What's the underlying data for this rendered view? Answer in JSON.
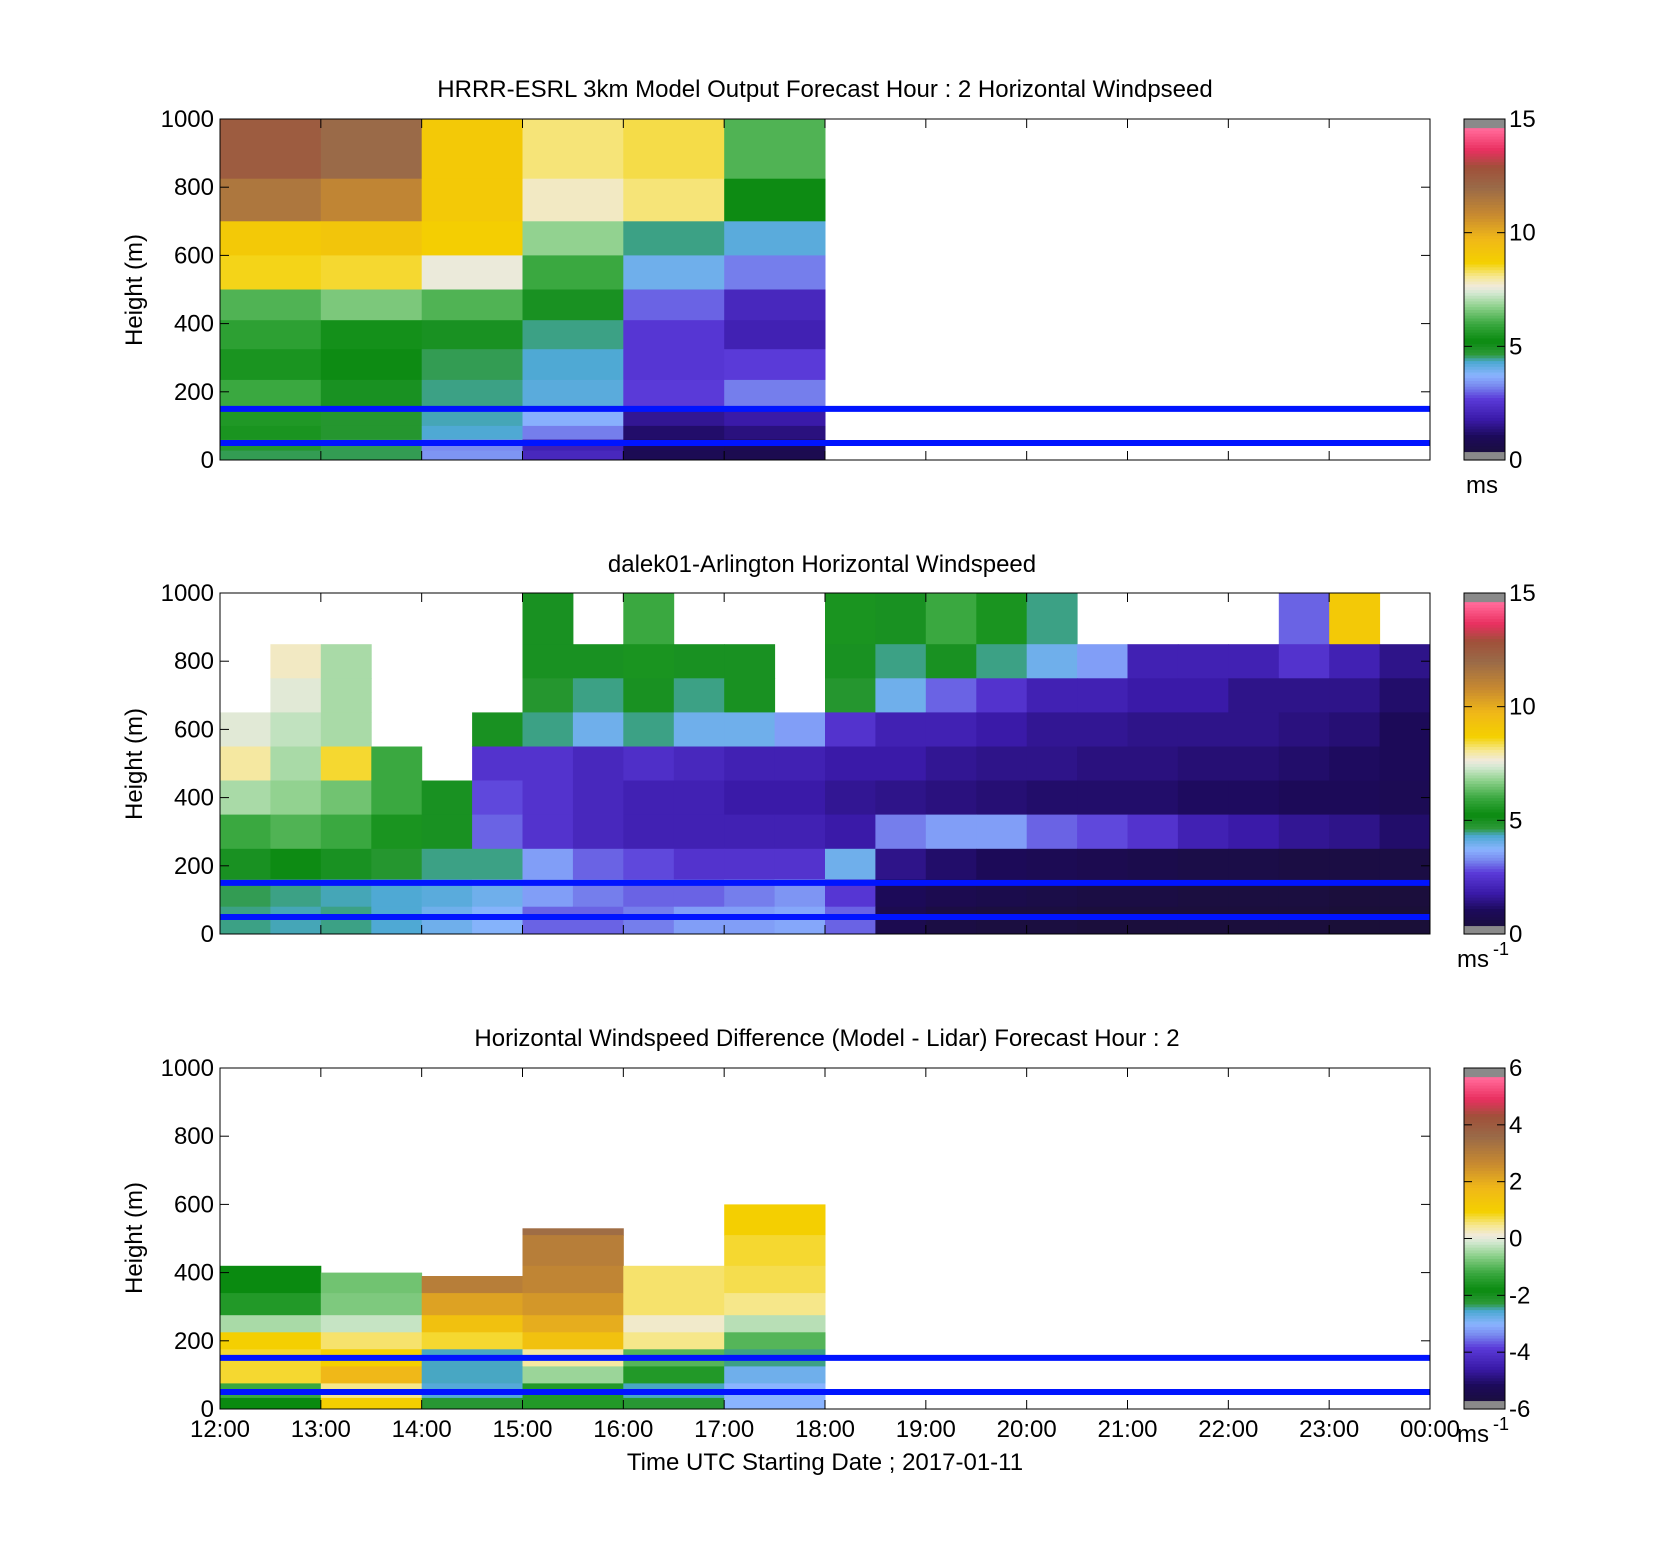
{
  "figure": {
    "xlabel": "Time UTC  Starting Date ; 2017-01-11"
  },
  "chart_data": [
    {
      "type": "heatmap",
      "title": "HRRR-ESRL 3km Model Output   Forecast Hour : 2 Horizontal Windpseed",
      "ylabel": "Height (m)",
      "xlabel": "",
      "x_ticks": [
        "12:00",
        "13:00",
        "14:00",
        "15:00",
        "16:00",
        "17:00",
        "18:00",
        "19:00",
        "20:00",
        "21:00",
        "22:00",
        "23:00",
        "00:00"
      ],
      "x_tick_labels_shown": false,
      "y_ticks": [
        0,
        200,
        400,
        600,
        800,
        1000
      ],
      "ylim": [
        0,
        1000
      ],
      "colorbar": {
        "ticks": [
          0,
          5,
          10,
          15
        ],
        "label": "ms",
        "superscript": "",
        "range": [
          0,
          15
        ]
      },
      "reference_lines_m": [
        50,
        150
      ],
      "reference_line_color": "#0014ff",
      "grid": false,
      "x_hours": [
        12,
        13,
        14,
        15,
        16,
        17
      ],
      "y_levels": [
        900,
        750,
        650,
        550,
        450,
        370,
        280,
        190,
        120,
        80,
        40,
        15
      ],
      "values": [
        [
          12.5,
          12.0,
          9.0,
          8.2,
          8.4,
          6.2
        ],
        [
          11.5,
          11.0,
          9.0,
          7.8,
          8.2,
          5.2
        ],
        [
          9.0,
          9.2,
          8.8,
          6.8,
          4.5,
          4.2
        ],
        [
          8.6,
          8.5,
          7.6,
          6.0,
          4.0,
          3.2
        ],
        [
          6.2,
          6.6,
          6.2,
          5.0,
          3.0,
          2.2
        ],
        [
          5.8,
          5.4,
          5.0,
          4.5,
          2.6,
          2.0
        ],
        [
          5.5,
          5.2,
          4.6,
          4.3,
          2.6,
          2.7
        ],
        [
          6.0,
          5.0,
          4.5,
          4.2,
          2.7,
          3.2
        ],
        [
          5.6,
          4.8,
          4.4,
          3.7,
          1.6,
          1.8
        ],
        [
          5.5,
          4.8,
          4.3,
          3.2,
          1.2,
          1.4
        ],
        [
          4.8,
          4.6,
          3.3,
          2.0,
          1.0,
          0.9
        ],
        [
          4.6,
          4.6,
          3.4,
          2.2,
          0.9,
          0.8
        ]
      ]
    },
    {
      "type": "heatmap",
      "title": "dalek01-Arlington  Horizontal Windspeed",
      "ylabel": "Height (m)",
      "xlabel": "",
      "x_ticks": [
        "12:00",
        "13:00",
        "14:00",
        "15:00",
        "16:00",
        "17:00",
        "18:00",
        "19:00",
        "20:00",
        "21:00",
        "22:00",
        "23:00",
        "00:00"
      ],
      "x_tick_labels_shown": false,
      "y_ticks": [
        0,
        200,
        400,
        600,
        800,
        1000
      ],
      "ylim": [
        0,
        1000
      ],
      "colorbar": {
        "ticks": [
          0,
          5,
          10,
          15
        ],
        "label": "ms",
        "superscript": "-1",
        "range": [
          0,
          15
        ]
      },
      "reference_lines_m": [
        50,
        150
      ],
      "reference_line_color": "#0014ff",
      "grid": false,
      "x_hours": [
        12.0,
        12.5,
        13.0,
        13.5,
        14.0,
        14.5,
        15.0,
        15.5,
        16.0,
        16.5,
        17.0,
        17.5,
        18.0,
        18.5,
        19.0,
        19.5,
        20.0,
        20.5,
        21.0,
        21.5,
        22.0,
        22.5,
        23.0,
        23.5
      ],
      "y_levels": [
        900,
        800,
        700,
        600,
        500,
        400,
        300,
        200,
        120,
        40
      ],
      "values": [
        [
          null,
          null,
          null,
          null,
          null,
          null,
          5.0,
          null,
          6.0,
          null,
          null,
          null,
          5.5,
          5.0,
          6.0,
          5.5,
          4.5,
          null,
          null,
          null,
          null,
          3.0,
          9.0,
          null
        ],
        [
          null,
          7.8,
          7.0,
          null,
          null,
          null,
          5.0,
          5.0,
          5.5,
          5.0,
          5.0,
          null,
          5.0,
          4.5,
          5.0,
          4.5,
          4.0,
          3.5,
          2.0,
          2.0,
          2.0,
          2.5,
          2.0,
          1.5
        ],
        [
          null,
          7.5,
          7.0,
          null,
          null,
          null,
          4.8,
          4.5,
          5.0,
          4.5,
          5.0,
          null,
          4.8,
          4.0,
          3.0,
          2.5,
          2.0,
          2.0,
          1.8,
          1.8,
          1.5,
          1.5,
          1.5,
          1.2
        ],
        [
          7.5,
          7.2,
          7.0,
          null,
          null,
          5.0,
          4.5,
          4.0,
          4.5,
          4.0,
          4.0,
          3.5,
          2.5,
          2.0,
          2.0,
          1.8,
          1.6,
          1.6,
          1.5,
          1.5,
          1.5,
          1.4,
          1.3,
          1.0
        ],
        [
          8.0,
          7.0,
          8.5,
          6.0,
          null,
          2.5,
          2.5,
          2.2,
          2.4,
          2.2,
          2.0,
          2.0,
          1.8,
          1.8,
          1.6,
          1.5,
          1.5,
          1.4,
          1.4,
          1.3,
          1.3,
          1.2,
          1.1,
          1.0
        ],
        [
          7.0,
          6.8,
          6.5,
          6.0,
          5.0,
          2.8,
          2.5,
          2.2,
          2.0,
          2.0,
          1.8,
          1.8,
          1.6,
          1.5,
          1.4,
          1.3,
          1.2,
          1.2,
          1.2,
          1.1,
          1.1,
          1.0,
          1.0,
          0.9
        ],
        [
          6.0,
          6.2,
          6.0,
          5.5,
          5.0,
          3.0,
          2.5,
          2.2,
          2.0,
          2.0,
          2.0,
          2.0,
          1.8,
          3.2,
          3.5,
          3.5,
          3.0,
          2.8,
          2.5,
          2.0,
          1.8,
          1.6,
          1.5,
          1.2
        ],
        [
          5.0,
          5.2,
          5.0,
          4.8,
          4.5,
          4.5,
          3.5,
          3.0,
          2.8,
          2.5,
          2.5,
          2.5,
          4.0,
          1.5,
          1.2,
          1.0,
          0.9,
          0.8,
          0.7,
          0.6,
          0.6,
          0.5,
          0.5,
          0.5
        ],
        [
          4.6,
          4.5,
          4.4,
          4.3,
          4.2,
          4.0,
          3.5,
          3.2,
          3.0,
          3.0,
          3.2,
          3.4,
          2.6,
          1.0,
          0.8,
          0.7,
          0.6,
          0.5,
          0.5,
          0.4,
          0.4,
          0.4,
          0.3,
          0.3
        ],
        [
          4.5,
          4.4,
          4.5,
          4.3,
          4.0,
          3.8,
          3.0,
          3.0,
          3.2,
          3.5,
          3.5,
          3.6,
          3.0,
          0.8,
          0.5,
          0.4,
          0.4,
          0.3,
          0.3,
          0.3,
          0.3,
          0.3,
          0.2,
          0.2
        ]
      ]
    },
    {
      "type": "heatmap",
      "title": "Horizontal Windspeed Difference (Model - Lidar) Forecast Hour : 2",
      "ylabel": "Height (m)",
      "xlabel": "Time UTC  Starting Date ; 2017-01-11",
      "x_ticks": [
        "12:00",
        "13:00",
        "14:00",
        "15:00",
        "16:00",
        "17:00",
        "18:00",
        "19:00",
        "20:00",
        "21:00",
        "22:00",
        "23:00",
        "00:00"
      ],
      "x_tick_labels_shown": true,
      "y_ticks": [
        0,
        200,
        400,
        600,
        800,
        1000
      ],
      "ylim": [
        0,
        1000
      ],
      "colorbar": {
        "ticks": [
          -6,
          -4,
          -2,
          0,
          2,
          4
        ],
        "top_tick": 6,
        "label": "ms",
        "superscript": "-1",
        "range": [
          -6,
          6
        ]
      },
      "reference_lines_m": [
        50,
        150
      ],
      "reference_line_color": "#0014ff",
      "grid": false,
      "x_hours": [
        12,
        13,
        14,
        15,
        16,
        17
      ],
      "column_tops_m": [
        470,
        400,
        390,
        530,
        430,
        600
      ],
      "y_levels": [
        560,
        460,
        380,
        300,
        250,
        200,
        150,
        100,
        50,
        15
      ],
      "values": [
        [
          null,
          null,
          null,
          3.5,
          null,
          1.0
        ],
        [
          null,
          null,
          null,
          3.0,
          null,
          0.8
        ],
        [
          -1.8,
          -0.8,
          3.0,
          2.8,
          0.6,
          0.7
        ],
        [
          -1.5,
          -0.7,
          2.2,
          2.4,
          0.6,
          0.5
        ],
        [
          -0.4,
          -0.2,
          1.5,
          2.0,
          0.2,
          -0.3
        ],
        [
          1.0,
          0.6,
          0.8,
          1.5,
          0.5,
          -1.0
        ],
        [
          0.8,
          1.0,
          -2.5,
          0.4,
          -1.0,
          -2.4
        ],
        [
          0.8,
          1.8,
          -2.5,
          -0.5,
          -1.5,
          -2.8
        ],
        [
          -1.2,
          0.5,
          -2.6,
          -1.5,
          -2.5,
          -3.0
        ],
        [
          -1.8,
          1.0,
          -2.2,
          -1.5,
          -2.2,
          -3.0
        ]
      ]
    }
  ]
}
